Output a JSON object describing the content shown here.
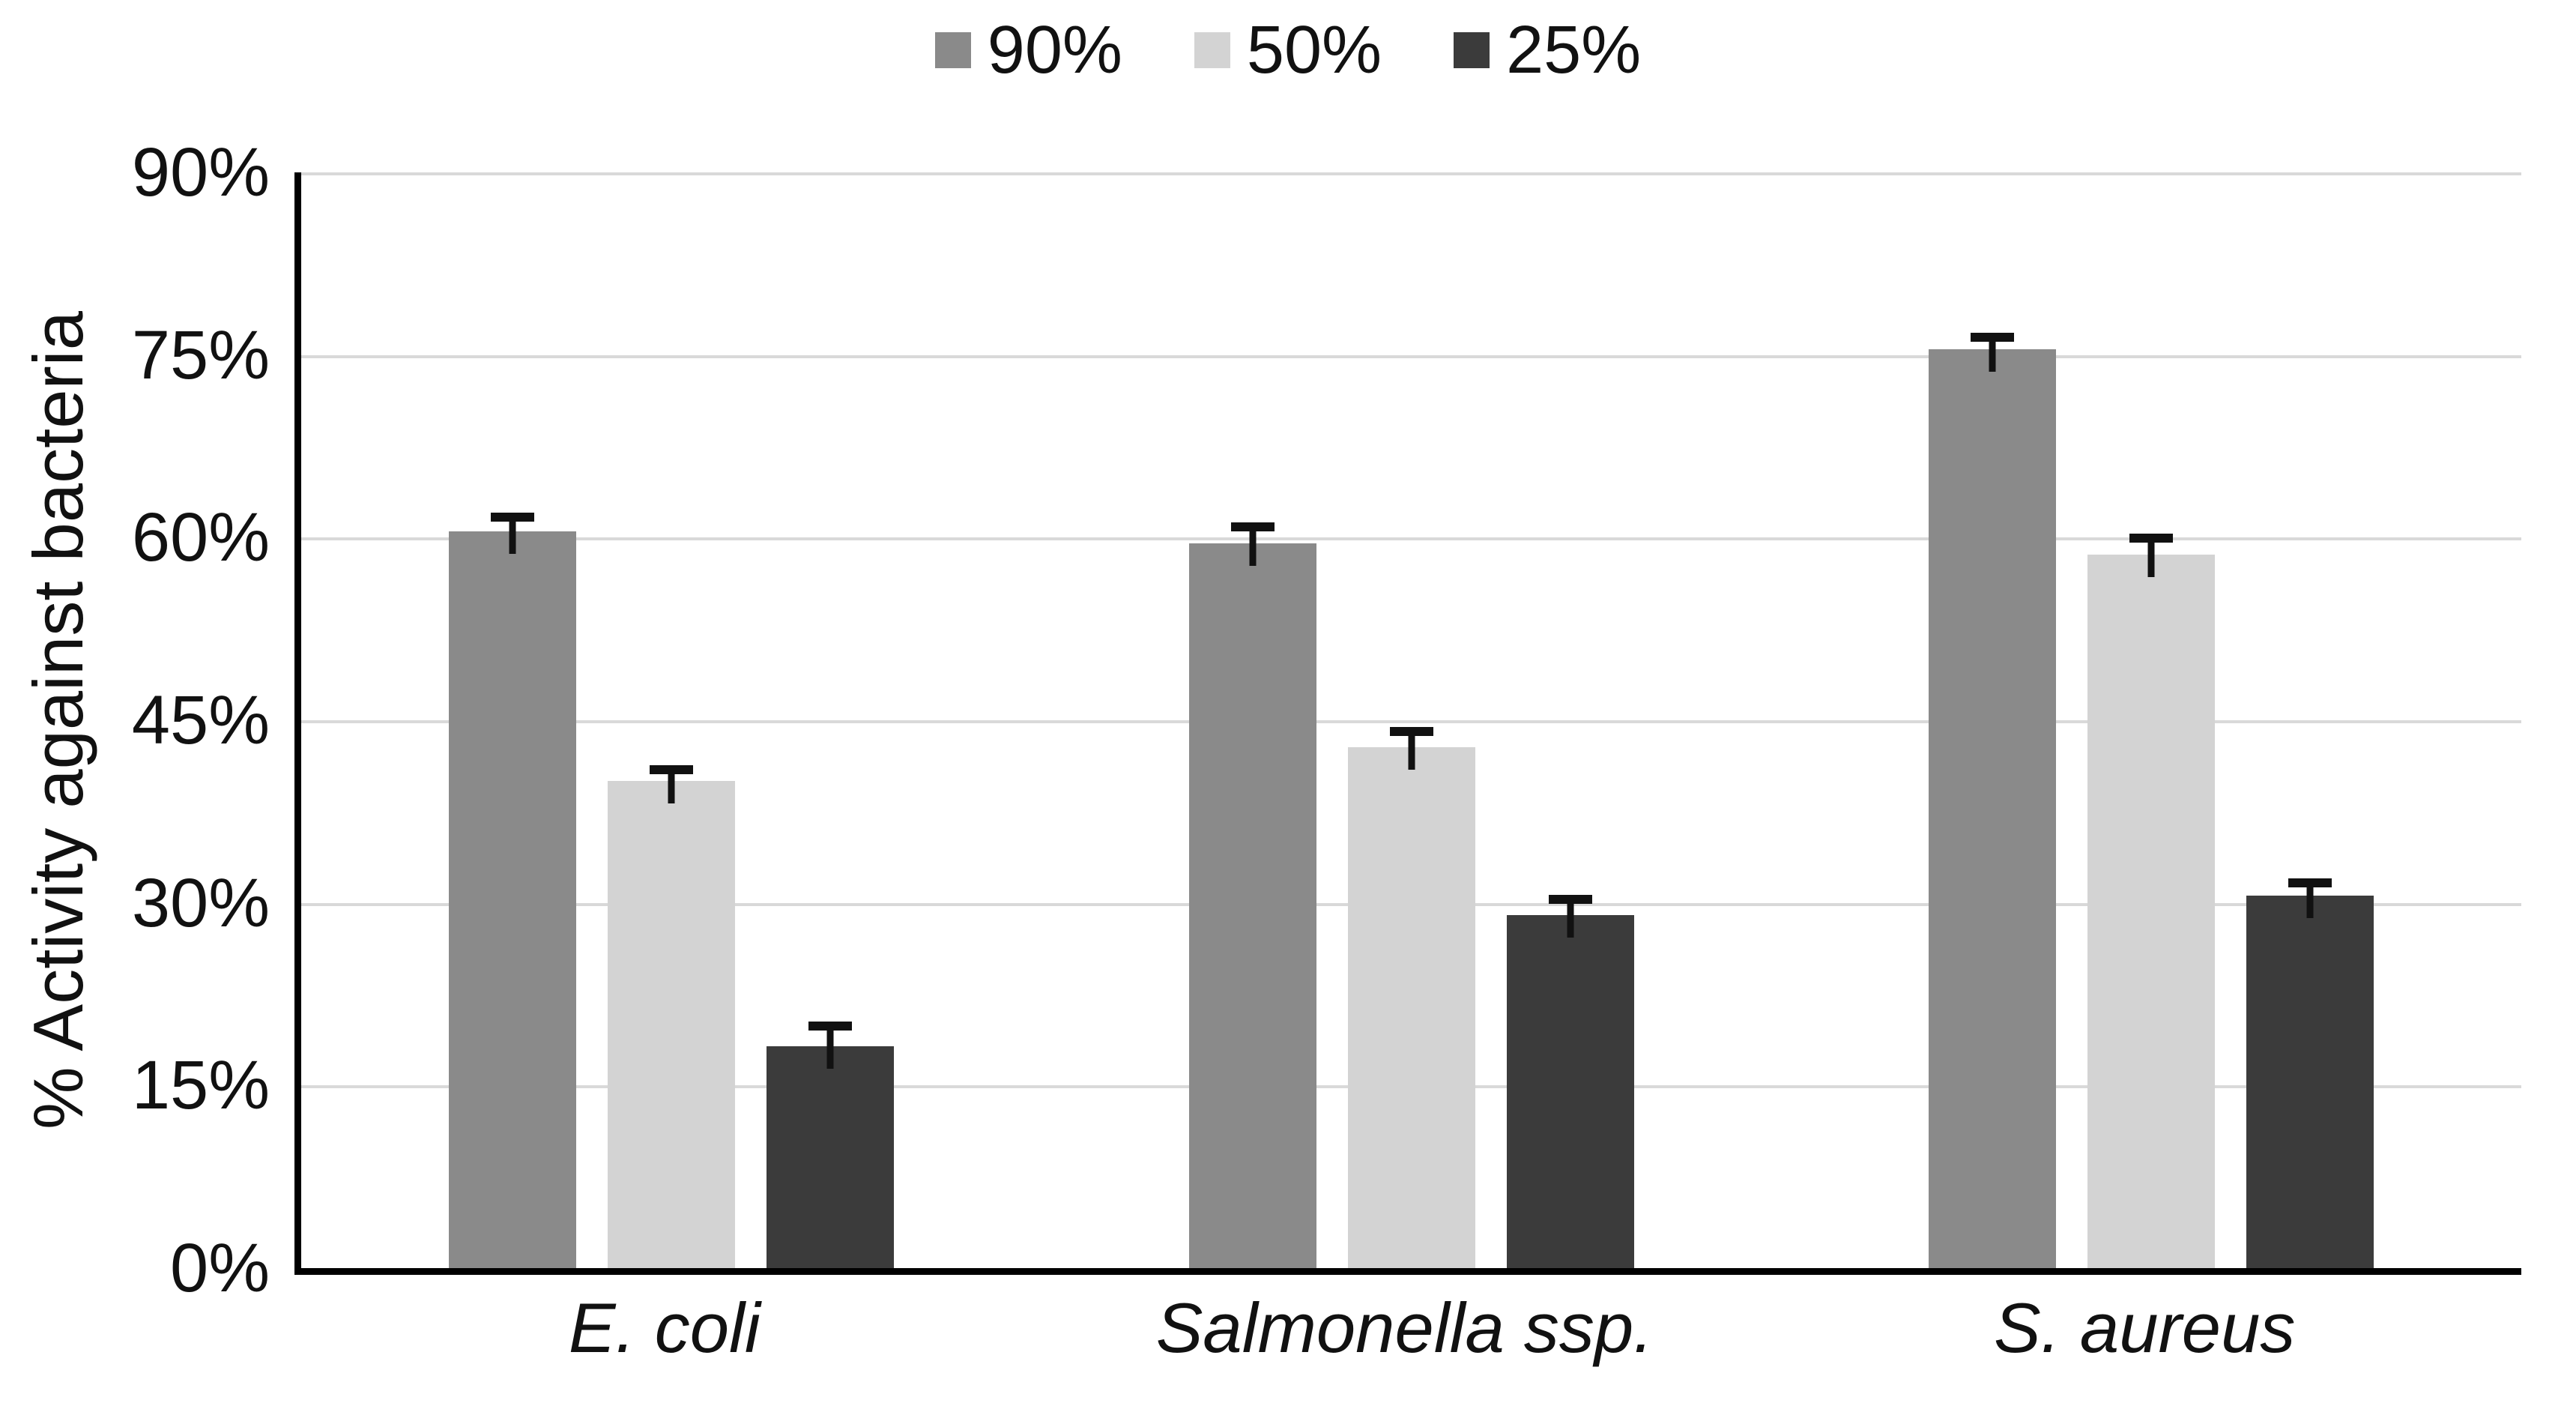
{
  "chart_data": {
    "type": "bar",
    "title": "",
    "ylabel": "% Activity against bacteria",
    "xlabel": "",
    "ylim": [
      0,
      90
    ],
    "yticks": [
      0,
      15,
      30,
      45,
      60,
      75,
      90
    ],
    "ytick_suffix": "%",
    "grid": true,
    "legend_position": "top-center",
    "categories": [
      "E. coli",
      "Salmonella ssp.",
      "S. aureus"
    ],
    "series": [
      {
        "name": "90%",
        "color": "#8a8a8a",
        "values": [
          60.5,
          59.5,
          75.5
        ],
        "errors": [
          0.8,
          1.0,
          0.6
        ]
      },
      {
        "name": "50%",
        "color": "#d3d3d3",
        "values": [
          40.0,
          42.8,
          58.6
        ],
        "errors": [
          0.6,
          0.9,
          1.0
        ]
      },
      {
        "name": "25%",
        "color": "#3b3b3b",
        "values": [
          18.2,
          29.0,
          30.6
        ],
        "errors": [
          1.3,
          0.9,
          0.7
        ]
      }
    ],
    "colors": {
      "gridline": "#d9d9d9",
      "axis": "#000000",
      "error_bar": "#111111",
      "background": "#ffffff"
    }
  }
}
